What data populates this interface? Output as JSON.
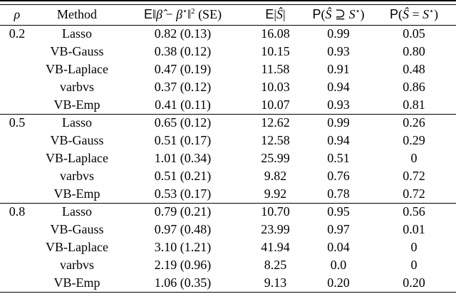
{
  "table": {
    "headers": {
      "rho": "ρ",
      "method": "Method",
      "mse": {
        "e": "E",
        "lnorm": "‖",
        "beta_hat": "β̂",
        "minus": " − ",
        "beta": "β",
        "star": "⋆",
        "rnorm": "‖",
        "sq": "2",
        "se": " (SE)"
      },
      "es": {
        "e": "E",
        "lbar": "|",
        "s_hat": "Ŝ",
        "rbar": "|"
      },
      "p_superset": {
        "p": "P",
        "lparen": "(",
        "s_hat": "Ŝ",
        "op": " ⊇ ",
        "s": "S",
        "star": "⋆",
        "rparen": ")"
      },
      "p_equal": {
        "p": "P",
        "lparen": "(",
        "s_hat": "Ŝ",
        "op": " = ",
        "s": "S",
        "star": "⋆",
        "rparen": ")"
      }
    },
    "groups": [
      {
        "rho": "0.2",
        "rows": [
          {
            "method": "Lasso",
            "mse": "0.82 (0.13)",
            "es": "16.08",
            "p_superset": "0.99",
            "p_equal": "0.05"
          },
          {
            "method": "VB-Gauss",
            "mse": "0.38 (0.12)",
            "es": "10.15",
            "p_superset": "0.93",
            "p_equal": "0.80"
          },
          {
            "method": "VB-Laplace",
            "mse": "0.47 (0.19)",
            "es": "11.58",
            "p_superset": "0.91",
            "p_equal": "0.48"
          },
          {
            "method": "varbvs",
            "mse": "0.37 (0.12)",
            "es": "10.03",
            "p_superset": "0.94",
            "p_equal": "0.86"
          },
          {
            "method": "VB-Emp",
            "mse": "0.41 (0.11)",
            "es": "10.07",
            "p_superset": "0.93",
            "p_equal": "0.81"
          }
        ]
      },
      {
        "rho": "0.5",
        "rows": [
          {
            "method": "Lasso",
            "mse": "0.65 (0.12)",
            "es": "12.62",
            "p_superset": "0.99",
            "p_equal": "0.26"
          },
          {
            "method": "VB-Gauss",
            "mse": "0.51 (0.17)",
            "es": "12.58",
            "p_superset": "0.94",
            "p_equal": "0.29"
          },
          {
            "method": "VB-Laplace",
            "mse": "1.01 (0.34)",
            "es": "25.99",
            "p_superset": "0.51",
            "p_equal": "0"
          },
          {
            "method": "varbvs",
            "mse": "0.51 (0.21)",
            "es": "9.82",
            "p_superset": "0.76",
            "p_equal": "0.72"
          },
          {
            "method": "VB-Emp",
            "mse": "0.53 (0.17)",
            "es": "9.92",
            "p_superset": "0.78",
            "p_equal": "0.72"
          }
        ]
      },
      {
        "rho": "0.8",
        "rows": [
          {
            "method": "Lasso",
            "mse": "0.79 (0.21)",
            "es": "10.70",
            "p_superset": "0.95",
            "p_equal": "0.56"
          },
          {
            "method": "VB-Gauss",
            "mse": "0.97 (0.48)",
            "es": "23.99",
            "p_superset": "0.97",
            "p_equal": "0.01"
          },
          {
            "method": "VB-Laplace",
            "mse": "3.10 (1.21)",
            "es": "41.94",
            "p_superset": "0.04",
            "p_equal": "0"
          },
          {
            "method": "varbvs",
            "mse": "2.19 (0.96)",
            "es": "8.25",
            "p_superset": "0.0",
            "p_equal": "0"
          },
          {
            "method": "VB-Emp",
            "mse": "1.06 (0.35)",
            "es": "9.13",
            "p_superset": "0.20",
            "p_equal": "0.20"
          }
        ]
      }
    ]
  },
  "colors": {
    "text": "#000000",
    "background": "#ffffff",
    "rule": "#000000"
  }
}
